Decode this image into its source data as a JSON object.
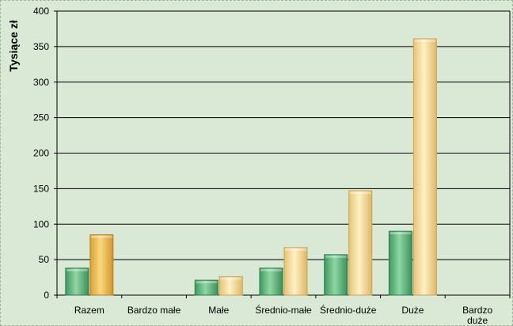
{
  "chart_data": {
    "type": "bar",
    "title": "",
    "xlabel": "",
    "ylabel": "Tysiące zł",
    "ylim": [
      0,
      400
    ],
    "yticks": [
      0,
      50,
      100,
      150,
      200,
      250,
      300,
      350,
      400
    ],
    "grid": true,
    "categories": [
      "Razem",
      "Bardzo małe",
      "Małe",
      "Średnio-małe",
      "Średnio-duże",
      "Duże",
      "Bardzo duże"
    ],
    "category_lines": [
      [
        "Razem"
      ],
      [
        "Bardzo małe"
      ],
      [
        "Małe"
      ],
      [
        "Średnio-małe"
      ],
      [
        "Średnio-duże"
      ],
      [
        "Duże"
      ],
      [
        "Bardzo",
        "duże"
      ]
    ],
    "series": [
      {
        "values": [
          38,
          null,
          21,
          38,
          57,
          90,
          null
        ]
      },
      {
        "values": [
          85,
          null,
          26,
          67,
          147,
          361,
          null
        ]
      }
    ],
    "colors": {
      "series1": "#5cb87a",
      "series2": "#f2d28a",
      "series2_first": "#e8b64a",
      "background": "#d9e9d6",
      "grid": "#000000"
    }
  }
}
